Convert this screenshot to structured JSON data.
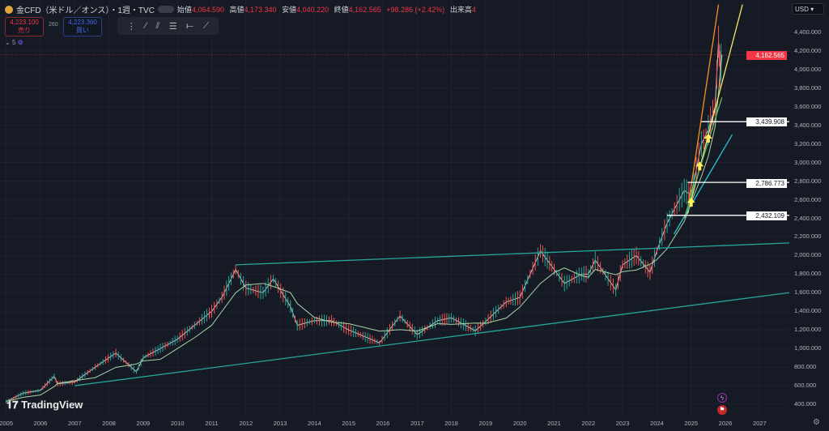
{
  "header": {
    "symbol": "金CFD（米ドル／オンス）・1週・TVC",
    "open_label": "始値",
    "open": "4,064.590",
    "high_label": "高値",
    "high": "4,173.340",
    "low_label": "安値",
    "low": "4,040.220",
    "close_label": "終値",
    "close": "4,162.565",
    "change": "+98.286 (+2.42%)",
    "volume_label": "出来高",
    "volume": "4"
  },
  "trade": {
    "sell_price": "4,223.100",
    "sell_label": "売り",
    "spread": "260",
    "buy_price": "4,223.360",
    "buy_label": "買い"
  },
  "indicators": {
    "count": "5"
  },
  "currency": "USD",
  "brand": "TradingView",
  "current_price": "4,162.565",
  "levels": [
    "3,439.908",
    "2,786.773",
    "2,432.109"
  ],
  "colors": {
    "bg": "#161a25",
    "up": "#26a69a",
    "down": "#ef5350",
    "trend": "#26a69a",
    "orange": "#f7931a",
    "yellow": "#f5e663",
    "cyan": "#26c6da",
    "current": "#f23645"
  },
  "chart_data": {
    "type": "line",
    "title": "Gold CFD (USD/oz) weekly",
    "ylim": [
      300,
      4700
    ],
    "xlim": [
      2005,
      2029
    ],
    "y_ticks": [
      "4,400.000",
      "4,200.000",
      "4,000.000",
      "3,800.000",
      "3,600.000",
      "3,400.000",
      "3,200.000",
      "3,000.000",
      "2,800.000",
      "2,600.000",
      "2,400.000",
      "2,200.000",
      "2,000.000",
      "1,800.000",
      "1,600.000",
      "1,400.000",
      "1,200.000",
      "1,000.000",
      "800.000",
      "600.000",
      "400.000"
    ],
    "y_tick_values": [
      4400,
      4200,
      4000,
      3800,
      3600,
      3400,
      3200,
      3000,
      2800,
      2600,
      2400,
      2200,
      2000,
      1800,
      1600,
      1400,
      1200,
      1000,
      800,
      600,
      400
    ],
    "x_ticks": [
      "2005",
      "2006",
      "2007",
      "2008",
      "2009",
      "2010",
      "2011",
      "2012",
      "2013",
      "2014",
      "2015",
      "2016",
      "2017",
      "2018",
      "2019",
      "2020",
      "2021",
      "2022",
      "2023",
      "2024",
      "2025",
      "2026",
      "2027"
    ],
    "price": {
      "x": [
        2005,
        2005.5,
        2006,
        2006.4,
        2006.5,
        2007,
        2007.6,
        2008.2,
        2008.8,
        2009,
        2009.5,
        2010,
        2010.5,
        2011,
        2011.3,
        2011.7,
        2012,
        2012.5,
        2012.8,
        2013.3,
        2013.5,
        2014,
        2014.5,
        2015,
        2015.9,
        2016.5,
        2017,
        2017.6,
        2018,
        2018.7,
        2019,
        2019.6,
        2020,
        2020.6,
        2021,
        2021.3,
        2021.8,
        2022,
        2022.2,
        2022.8,
        2023,
        2023.4,
        2023.8,
        2024,
        2024.3,
        2024.8,
        2025,
        2025.3,
        2025.5,
        2025.7,
        2025.8,
        2025.85,
        2025.9
      ],
      "y": [
        430,
        520,
        550,
        700,
        620,
        640,
        800,
        950,
        750,
        900,
        1000,
        1100,
        1250,
        1400,
        1550,
        1850,
        1650,
        1600,
        1750,
        1450,
        1250,
        1300,
        1300,
        1200,
        1060,
        1350,
        1150,
        1300,
        1330,
        1190,
        1290,
        1500,
        1550,
        2050,
        1850,
        1700,
        1800,
        1800,
        1950,
        1630,
        1900,
        2000,
        1820,
        2050,
        2350,
        2700,
        2650,
        3200,
        3350,
        3600,
        4300,
        4000,
        4160
      ]
    },
    "trendlines": [
      {
        "name": "upper-channel",
        "x": [
          2011.7,
          2028.9
        ],
        "y": [
          1900,
          2150
        ],
        "color": "#26a69a"
      },
      {
        "name": "lower-channel",
        "x": [
          2007,
          2028.9
        ],
        "y": [
          600,
          1650
        ],
        "color": "#26a69a"
      },
      {
        "name": "orange-fan",
        "x": [
          2024.9,
          2025.8
        ],
        "y": [
          2500,
          4700
        ],
        "color": "#f7931a"
      },
      {
        "name": "yellow-fan",
        "x": [
          2024.9,
          2026.5
        ],
        "y": [
          2450,
          4700
        ],
        "color": "#f5e663"
      },
      {
        "name": "cyan-fan",
        "x": [
          2024.5,
          2026.2
        ],
        "y": [
          2230,
          3300
        ],
        "color": "#26c6da"
      },
      {
        "name": "green-fan",
        "x": [
          2024.8,
          2025.9
        ],
        "y": [
          2400,
          3700
        ],
        "color": "#66bb6a"
      }
    ],
    "horizontal_levels": [
      {
        "start": 2025.3,
        "value": 3439.908
      },
      {
        "start": 2024.9,
        "value": 2786.773
      },
      {
        "start": 2024.3,
        "value": 2432.109
      }
    ],
    "arrows": [
      {
        "x": 2025.0,
        "y": 2560
      },
      {
        "x": 2025.25,
        "y": 2950
      },
      {
        "x": 2025.5,
        "y": 3250
      }
    ]
  }
}
